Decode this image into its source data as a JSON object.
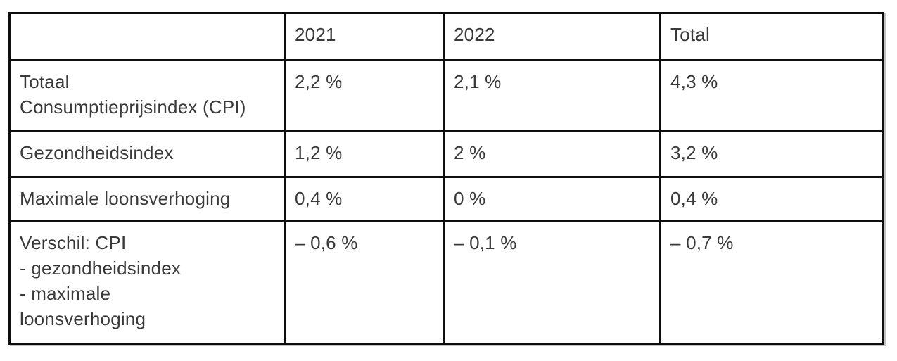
{
  "table": {
    "headers": [
      "",
      "2021",
      "2022",
      "Total"
    ],
    "rows": [
      {
        "label": "Totaal\nConsumptieprijsindex (CPI)",
        "values": [
          "2,2 %",
          "2,1 %",
          "4,3 %"
        ]
      },
      {
        "label": "Gezondheidsindex",
        "values": [
          "1,2 %",
          "2 %",
          "3,2 %"
        ]
      },
      {
        "label": "Maximale loonsverhoging",
        "values": [
          "0,4 %",
          "0 %",
          "0,4 %"
        ]
      },
      {
        "label": "Verschil: CPI\n- gezondheidsindex\n- maximale\nloonsverhoging",
        "values": [
          "– 0,6 %",
          "– 0,1 %",
          "– 0,7 %"
        ]
      }
    ]
  },
  "colors": {
    "border": "#0e0e0e",
    "text": "#3a3a3a",
    "background": "#ffffff"
  }
}
